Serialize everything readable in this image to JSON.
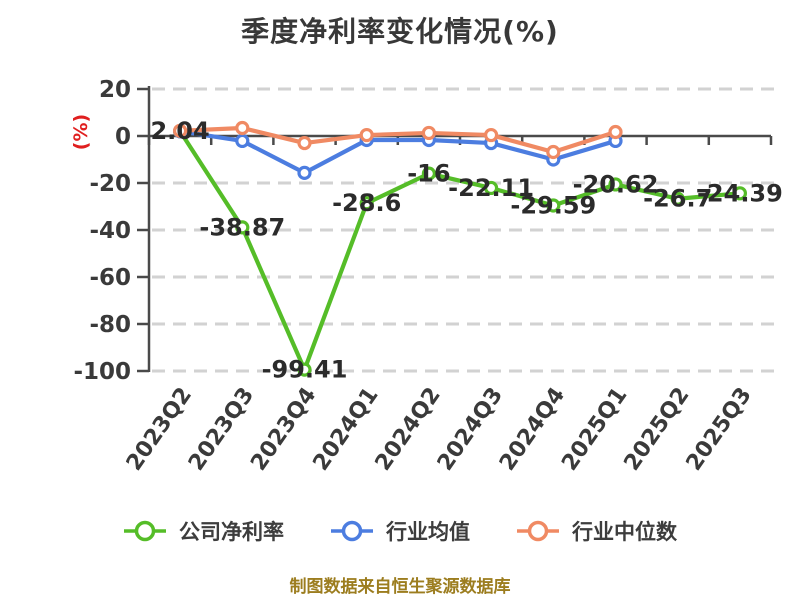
{
  "title": "季度净利率变化情况(%)",
  "y_axis_label": "(%)",
  "source_note": "制图数据来自恒生聚源数据库",
  "colors": {
    "company": "#55bd28",
    "industry_avg": "#4c7de0",
    "industry_median": "#f08a63",
    "axis": "#4a4a4a",
    "grid": "#d2d2d2",
    "tick_text": "#3a3a3a",
    "data_label_text": "#2b2b2b",
    "y_axis_label_red": "#e01f1f",
    "source_text": "#9c7d1f"
  },
  "chart_data": {
    "type": "line",
    "title": "季度净利率变化情况(%)",
    "ylabel": "(%)",
    "categories": [
      "2023Q2",
      "2023Q3",
      "2023Q4",
      "2024Q1",
      "2024Q2",
      "2024Q3",
      "2024Q4",
      "2025Q1",
      "2025Q2",
      "2025Q3"
    ],
    "series": [
      {
        "name": "公司净利率",
        "color_key": "company",
        "values": [
          2.04,
          -38.87,
          -99.41,
          -28.6,
          -16,
          -22.11,
          -29.59,
          -20.62,
          -26.7,
          -24.39
        ],
        "labels": [
          "2.04",
          "-38.87",
          "-99.41",
          "-28.6",
          "-16",
          "-22.11",
          "-29.59",
          "-20.62",
          "-26.7",
          "-24.39"
        ]
      },
      {
        "name": "行业均值",
        "color_key": "industry_avg",
        "values": [
          2.0,
          -2.1,
          -15.7,
          -1.7,
          -1.7,
          -3.0,
          -10.0,
          -2.1,
          null,
          null
        ],
        "labels": []
      },
      {
        "name": "行业中位数",
        "color_key": "industry_median",
        "values": [
          2.2,
          3.4,
          -3.0,
          0.4,
          1.3,
          0.4,
          -6.8,
          1.7,
          null,
          null
        ],
        "labels": []
      }
    ],
    "y_ticks": [
      20,
      0,
      -20,
      -40,
      -60,
      -80,
      -100
    ],
    "ylim": [
      -100,
      20
    ],
    "grid": "horizontal-dashed",
    "legend_position": "bottom"
  }
}
